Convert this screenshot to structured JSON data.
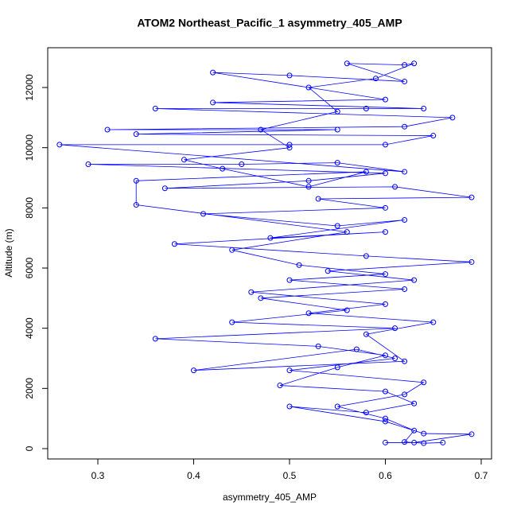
{
  "chart_data": {
    "type": "line",
    "title": "ATOM2 Northeast_Pacific_1 asymmetry_405_AMP",
    "x_label": "asymmetry_405_AMP",
    "y_label": "Altitude (m)",
    "color": "#0000ff",
    "grid": false,
    "xlim": [
      0.2477,
      0.7108
    ],
    "ylim": [
      -344,
      13322
    ],
    "xticks": [
      0.3,
      0.4,
      0.5,
      0.6,
      0.7
    ],
    "yticks": [
      0,
      2000,
      4000,
      6000,
      8000,
      10000,
      12000
    ],
    "x": [
      0.66,
      0.64,
      0.62,
      0.63,
      0.6,
      0.55,
      0.62,
      0.64,
      0.5,
      0.61,
      0.57,
      0.4,
      0.62,
      0.58,
      0.65,
      0.52,
      0.6,
      0.46,
      0.63,
      0.54,
      0.69,
      0.58,
      0.38,
      0.6,
      0.48,
      0.62,
      0.55,
      0.41,
      0.6,
      0.53,
      0.69,
      0.61,
      0.37,
      0.52,
      0.6,
      0.29,
      0.45,
      0.55,
      0.62,
      0.26,
      0.5,
      0.6,
      0.65,
      0.34,
      0.55,
      0.31,
      0.62,
      0.67,
      0.36,
      0.58,
      0.64,
      0.42,
      0.6,
      0.42,
      0.5,
      0.62,
      0.56,
      0.62,
      0.63,
      0.59,
      0.52,
      0.55,
      0.47,
      0.5,
      0.39,
      0.43,
      0.52,
      0.58,
      0.34,
      0.34,
      0.56,
      0.44,
      0.51,
      0.6,
      0.5,
      0.62,
      0.47,
      0.56,
      0.44,
      0.61,
      0.36,
      0.53,
      0.6,
      0.55,
      0.49,
      0.6,
      0.63,
      0.58,
      0.5,
      0.6,
      0.64,
      0.69,
      0.63,
      0.6
    ],
    "values": [
      200,
      180,
      220,
      600,
      1000,
      1400,
      1800,
      2200,
      2600,
      3000,
      3300,
      2600,
      2900,
      3800,
      4200,
      4500,
      4800,
      5200,
      5600,
      5900,
      6200,
      6400,
      6800,
      7200,
      7000,
      7600,
      7400,
      7800,
      8000,
      8300,
      8350,
      8700,
      8650,
      8900,
      9150,
      9450,
      9450,
      9500,
      9200,
      10100,
      10100,
      10100,
      10400,
      10450,
      10600,
      10600,
      10700,
      11000,
      11300,
      11300,
      11300,
      11500,
      11600,
      12500,
      12400,
      12200,
      12800,
      12750,
      12800,
      12300,
      12000,
      11200,
      10600,
      10000,
      9600,
      9300,
      8700,
      9200,
      8900,
      8100,
      7200,
      6600,
      6100,
      5800,
      5600,
      5300,
      5000,
      4600,
      4200,
      4000,
      3650,
      3400,
      3100,
      2700,
      2100,
      1900,
      1500,
      1200,
      1400,
      900,
      500,
      480,
      200,
      200
    ]
  }
}
